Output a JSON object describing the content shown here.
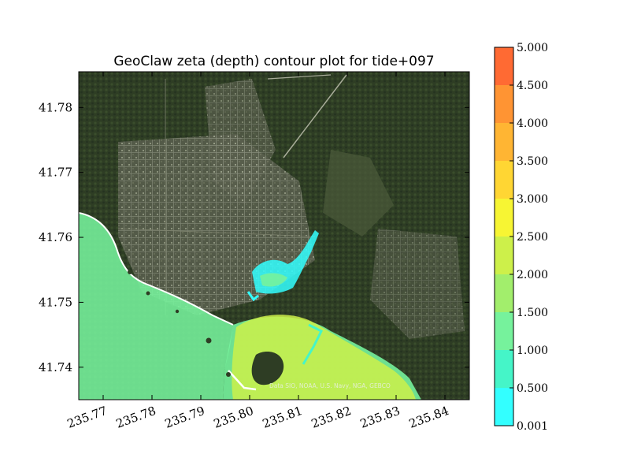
{
  "chart_data": {
    "type": "heatmap",
    "title": "GeoClaw zeta (depth) contour plot for tide+097",
    "xlim": [
      235.765,
      235.845
    ],
    "ylim": [
      41.735,
      41.7855
    ],
    "x_ticks": [
      235.77,
      235.78,
      235.79,
      235.8,
      235.81,
      235.82,
      235.83,
      235.84
    ],
    "x_tick_labels": [
      "235.77",
      "235.78",
      "235.79",
      "235.80",
      "235.81",
      "235.82",
      "235.83",
      "235.84"
    ],
    "y_ticks": [
      41.74,
      41.75,
      41.76,
      41.77,
      41.78
    ],
    "y_tick_labels": [
      "41.74",
      "41.75",
      "41.76",
      "41.77",
      "41.78"
    ],
    "background": "satellite imagery",
    "attribution": "Data SIO, NOAA, U.S. Navy, NGA, GEBCO",
    "colorbar": {
      "levels": [
        0.001,
        0.5,
        1.0,
        1.5,
        2.0,
        2.5,
        3.0,
        3.5,
        4.0,
        4.5,
        5.0
      ],
      "tick_labels": [
        "0.001",
        "0.500",
        "1.000",
        "1.500",
        "2.000",
        "2.500",
        "3.000",
        "3.500",
        "4.000",
        "4.500",
        "5.000"
      ],
      "colors": [
        "#33ffff",
        "#45f5c8",
        "#76f29c",
        "#a2ee6c",
        "#cdf04a",
        "#f7f533",
        "#ffd633",
        "#ffb533",
        "#ff9433",
        "#ff6a33",
        "#ff3333"
      ]
    }
  }
}
